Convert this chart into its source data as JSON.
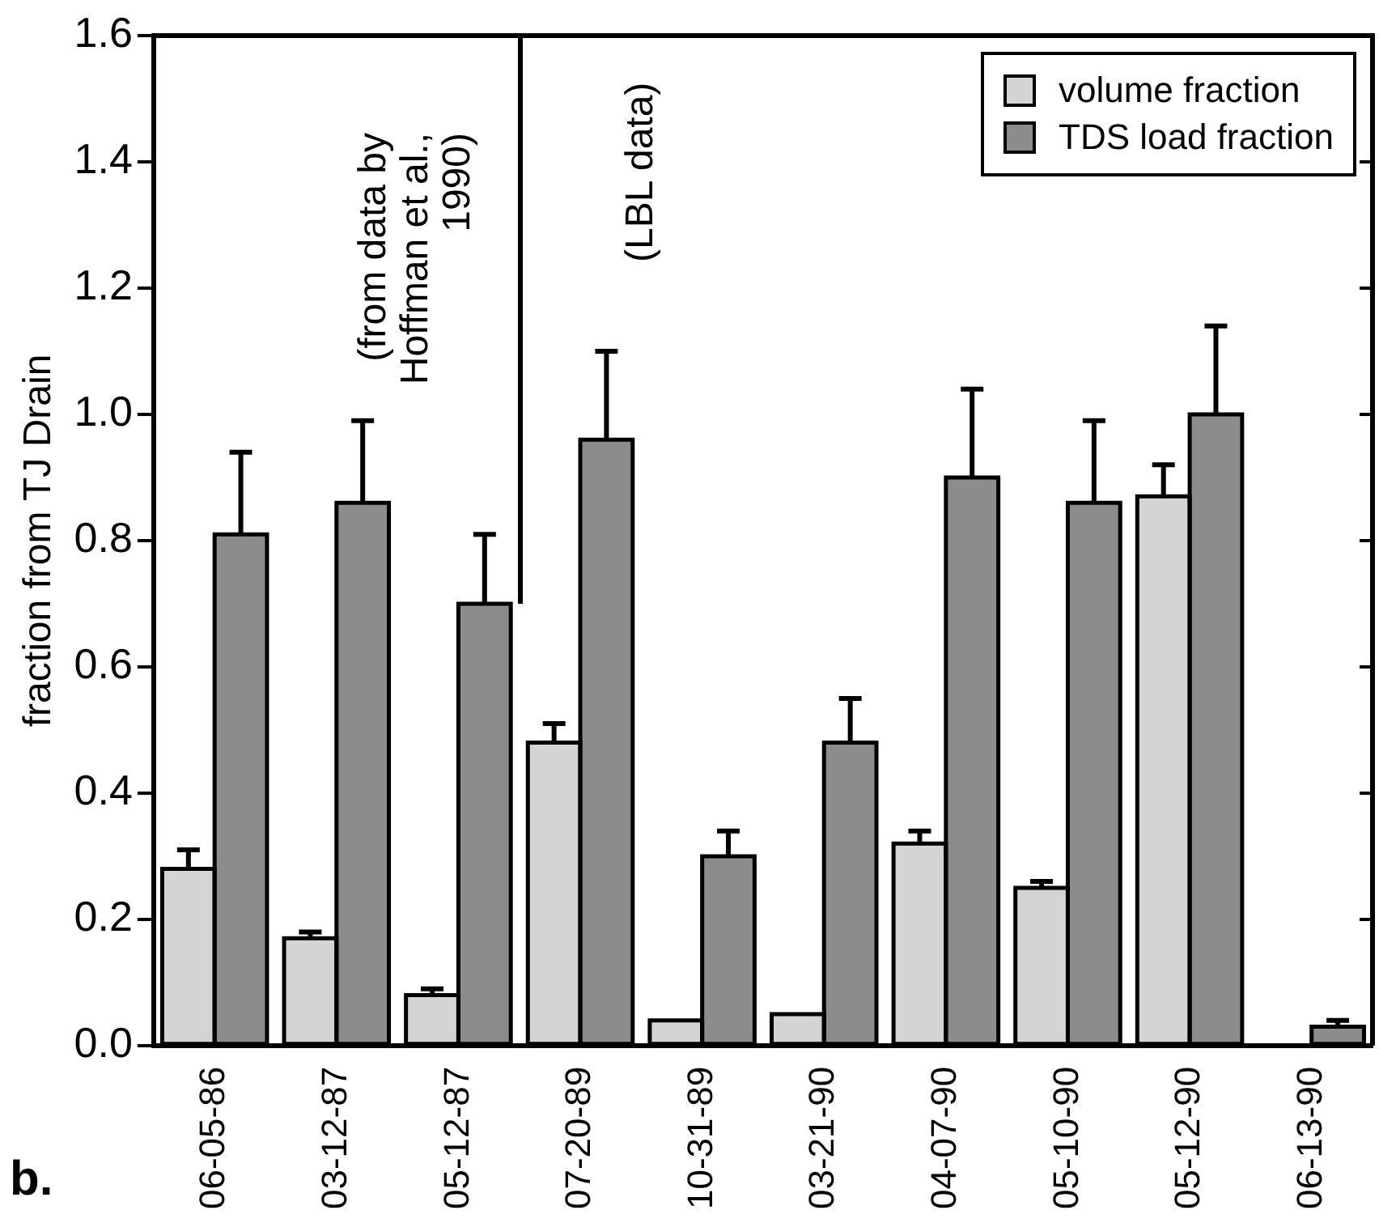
{
  "chart_data": {
    "type": "bar",
    "ylabel": "fraction from TJ Drain",
    "categories": [
      "06-05-86",
      "03-12-87",
      "05-12-87",
      "07-20-89",
      "10-31-89",
      "03-21-90",
      "04-07-90",
      "05-10-90",
      "05-12-90",
      "06-13-90"
    ],
    "series": [
      {
        "name": "volume fraction",
        "color": "#d4d4d4",
        "values": [
          0.28,
          0.17,
          0.08,
          0.48,
          0.04,
          0.05,
          0.32,
          0.25,
          0.87,
          0
        ],
        "errors": [
          [
            0.28,
            0.31
          ],
          [
            0.17,
            0.18
          ],
          [
            0.08,
            0.09
          ],
          [
            0.48,
            0.51
          ],
          null,
          null,
          [
            0.32,
            0.34
          ],
          [
            0.25,
            0.26
          ],
          [
            0.87,
            0.92
          ],
          null
        ]
      },
      {
        "name": "TDS load fraction",
        "color": "#8c8c8c",
        "values": [
          0.81,
          0.86,
          0.7,
          0.96,
          0.3,
          0.48,
          0.9,
          0.86,
          1.0,
          0.03
        ],
        "errors": [
          [
            0.81,
            0.94
          ],
          [
            0.86,
            0.99
          ],
          [
            0.7,
            0.81
          ],
          [
            0.96,
            1.1
          ],
          [
            0.3,
            0.34
          ],
          [
            0.48,
            0.55
          ],
          [
            0.9,
            1.04
          ],
          [
            0.86,
            0.99
          ],
          [
            1.0,
            1.14
          ],
          [
            0.03,
            0.04
          ]
        ]
      }
    ],
    "ylim": [
      0,
      1.6
    ],
    "yticks": [
      {
        "value": 0,
        "label": "0.0"
      },
      {
        "value": 0.2,
        "label": "0.2"
      },
      {
        "value": 0.4,
        "label": "0.4"
      },
      {
        "value": 0.6,
        "label": "0.6"
      },
      {
        "value": 0.8,
        "label": "0.8"
      },
      {
        "value": 1,
        "label": "1.0"
      },
      {
        "value": 1.2,
        "label": "1.2"
      },
      {
        "value": 1.4,
        "label": "1.4"
      },
      {
        "value": 1.6,
        "label": "1.6"
      }
    ],
    "grid": false,
    "legend": "top right",
    "annotations": [
      "(from data by Hoffman et al., 1990)",
      "(LBL data)",
      "b."
    ]
  }
}
